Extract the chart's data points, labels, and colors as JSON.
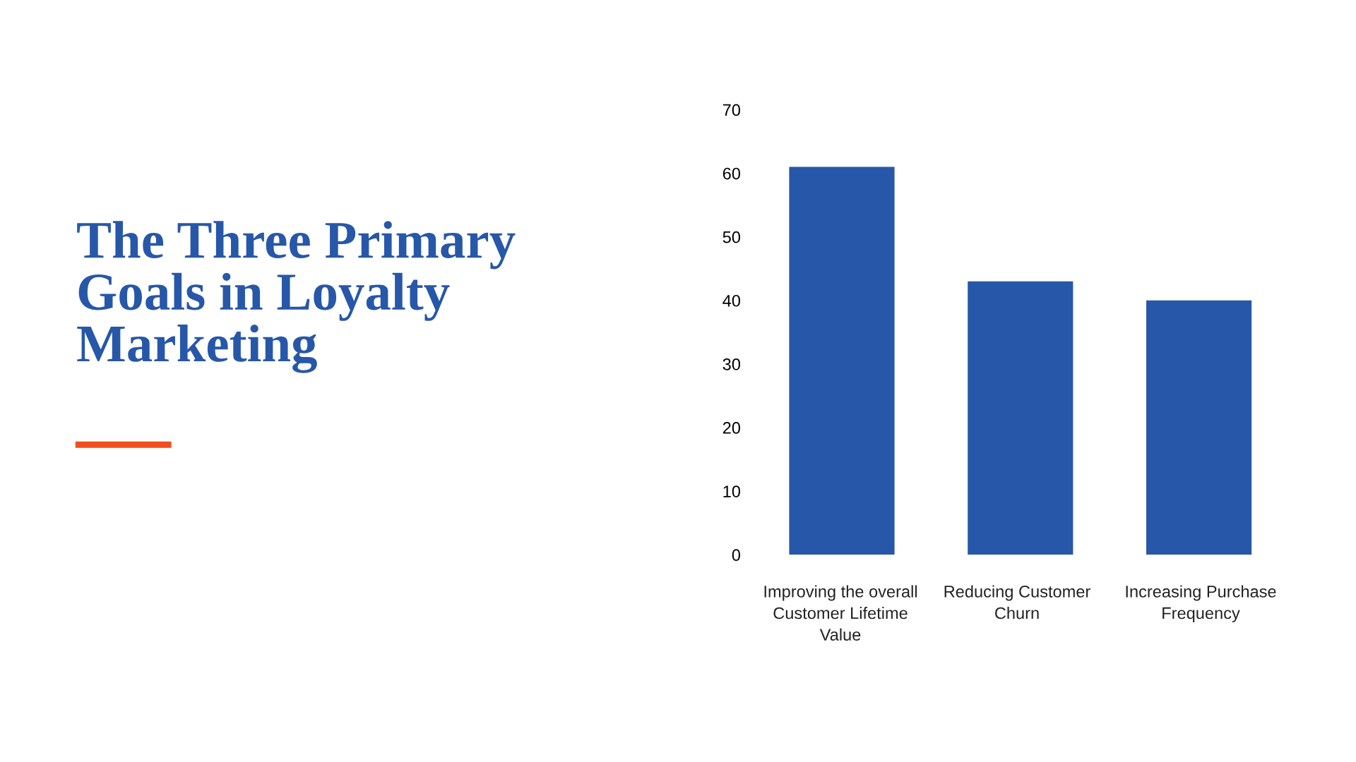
{
  "chart_data": {
    "type": "bar",
    "title": "The Three Primary Goals in Loyalty Marketing",
    "categories": [
      "Improving the overall Customer Lifetime Value",
      "Reducing Customer Churn",
      "Increasing Purchase Frequency"
    ],
    "values": [
      61,
      43,
      40
    ],
    "color": "#2757a8",
    "ylim": [
      0,
      70
    ],
    "yticks": [
      0,
      10,
      20,
      30,
      40,
      50,
      60,
      70
    ],
    "grid": false
  }
}
